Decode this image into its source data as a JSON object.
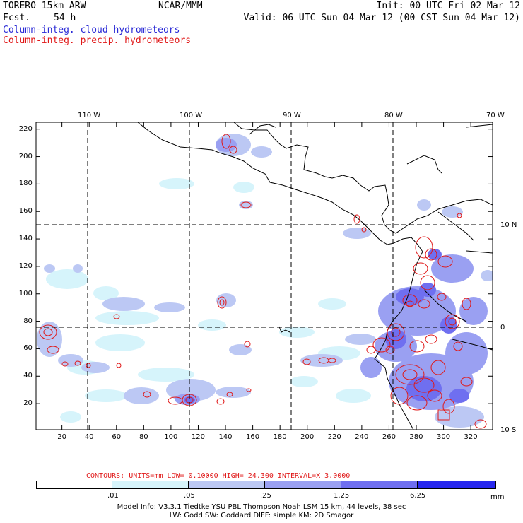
{
  "header": {
    "model": "TORERO  15km ARW",
    "fcst_label": "Fcst.",
    "fcst_value": "54 h",
    "center": "NCAR/MMM",
    "init": "Init: 00 UTC Fri 02 Mar 12",
    "valid": "Valid: 06 UTC Sun 04 Mar 12 (00 CST Sun 04 Mar 12)",
    "field_cloud": "Column-integ. cloud hydrometeors",
    "field_precip": "Column-integ. precip. hydrometeors"
  },
  "axes": {
    "lon_labels": [
      "110 W",
      "100 W",
      "90 W",
      "80 W",
      "70 W"
    ],
    "lat_labels": [
      "10 N",
      "0",
      "10 S"
    ],
    "x_ticks": [
      "20",
      "40",
      "60",
      "80",
      "100",
      "120",
      "140",
      "160",
      "180",
      "200",
      "220",
      "240",
      "260",
      "280",
      "300",
      "320"
    ],
    "y_ticks": [
      "20",
      "40",
      "60",
      "80",
      "100",
      "120",
      "140",
      "160",
      "180",
      "200",
      "220"
    ],
    "x_range": [
      1,
      336
    ],
    "y_range": [
      1,
      225
    ]
  },
  "contours": {
    "label": "CONTOURS:  UNITS=mm  LOW= 0.10000      HIGH=  24.300      INTERVAL=X  3.0000",
    "color": "#e01818"
  },
  "colorbar": {
    "levels": [
      ".01",
      ".05",
      ".25",
      "1.25",
      "6.25"
    ],
    "units": "mm",
    "colors": [
      "#ffffff",
      "#d6f4fb",
      "#bcc8f4",
      "#9aa0f2",
      "#6f6ff0",
      "#2828ee"
    ]
  },
  "footer": {
    "line1": "Model Info: V3.3.1   Tiedtke YSU PBL  Thompson    Noah LSM  15 km,   44 levels,   38 sec",
    "line2": "LW: Godd SW: Goddard DIFF: simple KM: 2D Smagor"
  }
}
